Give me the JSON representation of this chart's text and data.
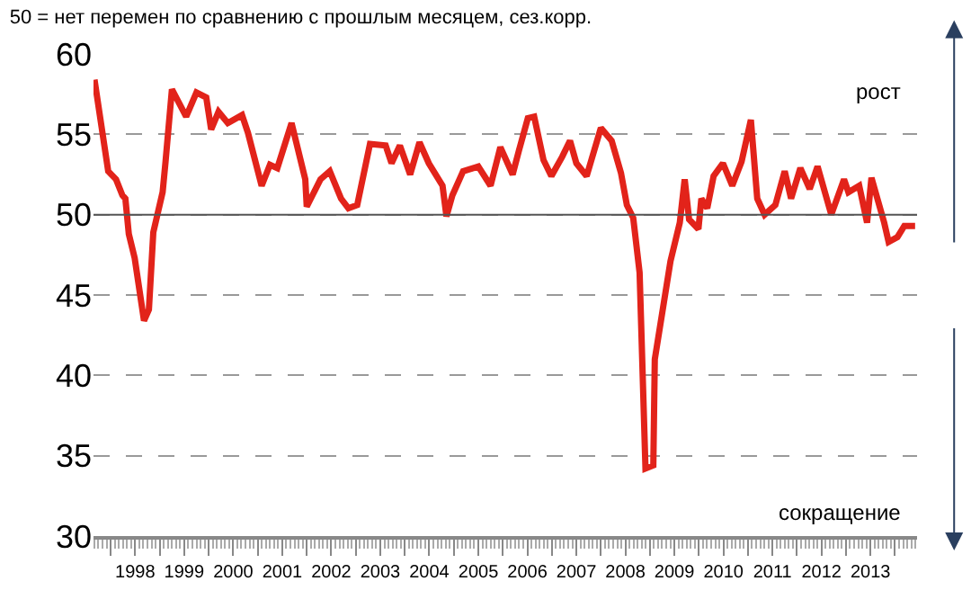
{
  "chart_data": {
    "type": "line",
    "title": "50 = нет перемен по сравнению с прошлым месяцем, сез.корр.",
    "annotations": [
      "рост",
      "сокращение"
    ],
    "x": [
      1997.67,
      1997.95,
      1998.11,
      1998.24,
      1998.3,
      1998.37,
      1998.49,
      1998.68,
      1998.78,
      1998.87,
      1999.06,
      1999.12,
      1999.25,
      1999.54,
      1999.75,
      1999.95,
      2000.05,
      2000.2,
      2000.39,
      2000.68,
      2000.8,
      2001.08,
      2001.25,
      2001.4,
      2001.69,
      2001.97,
      2002.0,
      2002.28,
      2002.47,
      2002.7,
      2002.85,
      2003.03,
      2003.29,
      2003.61,
      2003.73,
      2003.9,
      2004.11,
      2004.3,
      2004.49,
      2004.77,
      2004.85,
      2004.97,
      2005.19,
      2005.5,
      2005.75,
      2005.95,
      2006.2,
      2006.33,
      2006.51,
      2006.64,
      2006.83,
      2006.99,
      2007.21,
      2007.37,
      2007.5,
      2007.71,
      2008.0,
      2008.22,
      2008.41,
      2008.53,
      2008.66,
      2008.79,
      2008.91,
      2009.07,
      2009.1,
      2009.42,
      2009.61,
      2009.71,
      2009.8,
      2009.99,
      2010.05,
      2010.17,
      2010.3,
      2010.49,
      2010.68,
      2010.87,
      2011.06,
      2011.19,
      2011.34,
      2011.56,
      2011.75,
      2011.88,
      2012.07,
      2012.26,
      2012.42,
      2012.7,
      2012.96,
      2013.05,
      2013.27,
      2013.43,
      2013.52,
      2013.78,
      2013.87,
      2014.05,
      2014.19,
      2014.41
    ],
    "series": [
      {
        "color": "#e2231a",
        "values": [
          58.4,
          52.7,
          52.2,
          51.2,
          51.0,
          48.8,
          47.3,
          43.4,
          44.1,
          48.9,
          51.4,
          53.3,
          57.8,
          56.1,
          57.6,
          57.3,
          55.3,
          56.4,
          55.7,
          56.2,
          55.1,
          51.8,
          53.1,
          52.9,
          55.7,
          52.2,
          50.5,
          52.2,
          52.7,
          51.0,
          50.4,
          50.6,
          54.4,
          54.3,
          53.2,
          54.3,
          52.5,
          54.5,
          53.2,
          51.8,
          49.9,
          51.2,
          52.7,
          53.0,
          51.8,
          54.2,
          52.5,
          54.0,
          56.0,
          56.1,
          53.4,
          52.4,
          53.6,
          54.6,
          53.2,
          52.4,
          55.4,
          54.6,
          52.6,
          50.6,
          49.8,
          46.4,
          34.2,
          34.4,
          41.0,
          47.1,
          49.5,
          52.2,
          49.7,
          49.1,
          51.0,
          50.4,
          52.4,
          53.2,
          51.8,
          53.3,
          55.9,
          51.0,
          50.0,
          50.6,
          52.7,
          51.0,
          52.9,
          51.6,
          53.0,
          50.0,
          52.2,
          51.4,
          51.8,
          49.5,
          52.3,
          49.5,
          48.3,
          48.6,
          49.3,
          49.3
        ]
      }
    ],
    "xlim": [
      1997.65,
      2014.45
    ],
    "xticks": [
      {
        "value": 1998,
        "label": null
      },
      {
        "value": 1998.5,
        "label": "1998"
      },
      {
        "value": 1999,
        "label": null
      },
      {
        "value": 1999.5,
        "label": "1999"
      },
      {
        "value": 2000,
        "label": null
      },
      {
        "value": 2000.5,
        "label": "2000"
      },
      {
        "value": 2001,
        "label": null
      },
      {
        "value": 2001.5,
        "label": "2001"
      },
      {
        "value": 2002,
        "label": null
      },
      {
        "value": 2002.5,
        "label": "2002"
      },
      {
        "value": 2003,
        "label": null
      },
      {
        "value": 2003.5,
        "label": "2003"
      },
      {
        "value": 2004,
        "label": null
      },
      {
        "value": 2004.5,
        "label": "2004"
      },
      {
        "value": 2005,
        "label": null
      },
      {
        "value": 2005.5,
        "label": "2005"
      },
      {
        "value": 2006,
        "label": null
      },
      {
        "value": 2006.5,
        "label": "2006"
      },
      {
        "value": 2007,
        "label": null
      },
      {
        "value": 2007.5,
        "label": "2007"
      },
      {
        "value": 2008,
        "label": null
      },
      {
        "value": 2008.5,
        "label": "2008"
      },
      {
        "value": 2009,
        "label": null
      },
      {
        "value": 2009.5,
        "label": "2009"
      },
      {
        "value": 2010,
        "label": null
      },
      {
        "value": 2010.5,
        "label": "2010"
      },
      {
        "value": 2011,
        "label": null
      },
      {
        "value": 2011.5,
        "label": "2011"
      },
      {
        "value": 2012,
        "label": null
      },
      {
        "value": 2012.5,
        "label": "2012"
      },
      {
        "value": 2013,
        "label": null
      },
      {
        "value": 2013.5,
        "label": "2013"
      },
      {
        "value": 2014,
        "label": null
      }
    ],
    "ylim": [
      30,
      60
    ],
    "yticks": [
      30,
      35,
      40,
      45,
      50,
      55,
      60
    ],
    "ref_lines": [
      {
        "axis": "y",
        "value": 50,
        "color": "#555555",
        "line_style": "solid"
      }
    ],
    "grid": "y",
    "marker": "none",
    "line_style": "solid"
  }
}
